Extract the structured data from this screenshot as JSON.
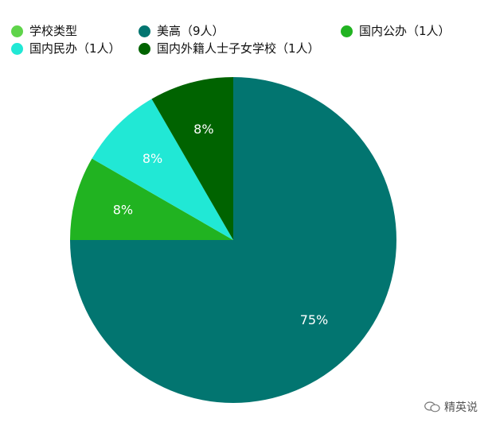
{
  "chart_data": {
    "type": "pie",
    "title": "",
    "legend_position": "top",
    "legend": [
      {
        "label": "学校类型",
        "color": "#5fd44a"
      },
      {
        "label": "美高（9人）",
        "color": "#027570"
      },
      {
        "label": "国内公办（1人）",
        "color": "#21b321"
      },
      {
        "label": "国内民办（1人）",
        "color": "#21e8d5"
      },
      {
        "label": "国内外籍人士子女学校（1人）",
        "color": "#006300"
      }
    ],
    "slices": [
      {
        "category": "美高（9人）",
        "value": 9,
        "percent_label": "75%",
        "color": "#027570"
      },
      {
        "category": "国内公办（1人）",
        "value": 1,
        "percent_label": "8%",
        "color": "#21b321"
      },
      {
        "category": "国内民办（1人）",
        "value": 1,
        "percent_label": "8%",
        "color": "#21e8d5"
      },
      {
        "category": "国内外籍人士子女学校（1人）",
        "value": 1,
        "percent_label": "8%",
        "color": "#006300"
      }
    ]
  },
  "watermark": {
    "text": "精英说",
    "icon": "wechat-bubble-icon"
  }
}
